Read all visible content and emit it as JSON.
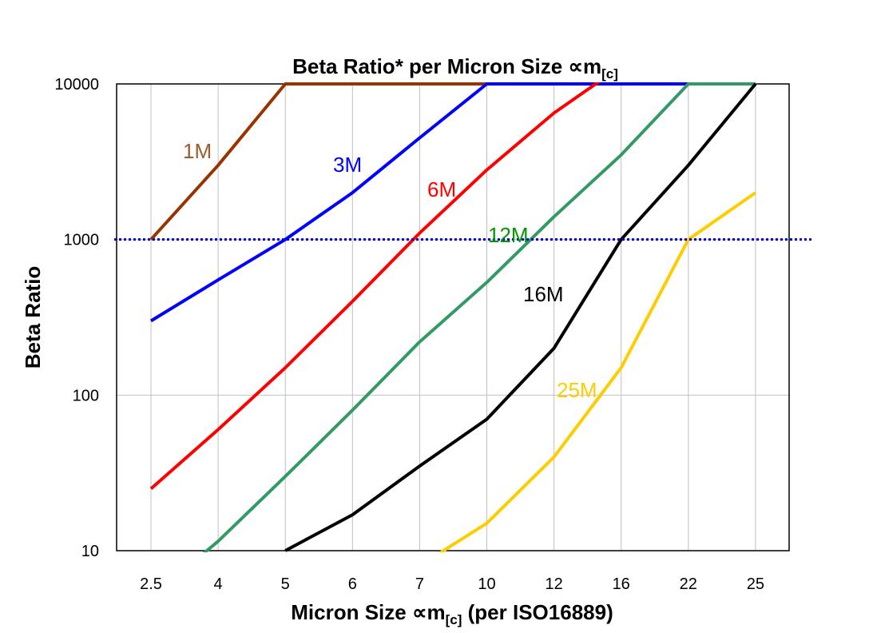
{
  "chart_data": {
    "type": "line",
    "title": "Beta Ratio* per Micron Size ∝m",
    "title_subscript": "[c]",
    "xlabel": "Micron Size ∝m",
    "xlabel_subscript": "[c]",
    "xlabel_suffix": " (per ISO16889)",
    "ylabel": "Beta Ratio",
    "y_scale": "log",
    "ylim": [
      10,
      10000
    ],
    "y_ticks": [
      "10",
      "100",
      "1000",
      "10000"
    ],
    "categories": [
      "2.5",
      "4",
      "5",
      "6",
      "7",
      "10",
      "12",
      "16",
      "22",
      "25"
    ],
    "grid": true,
    "reference_line": {
      "y": 1000,
      "color": "#0000CC",
      "style": "dotted"
    },
    "series": [
      {
        "name": "1M",
        "color": "#993300",
        "label_color": "#9C5B2B",
        "values": [
          1000,
          3000,
          10000,
          10000,
          10000,
          10000,
          10000,
          10000,
          10000,
          10000
        ]
      },
      {
        "name": "3M",
        "color": "#0000FF",
        "label_color": "#0000FF",
        "values": [
          300,
          550,
          1000,
          2000,
          4500,
          10000,
          10000,
          10000,
          10000,
          10000
        ]
      },
      {
        "name": "6M",
        "color": "#FF0000",
        "label_color": "#FF0000",
        "values": [
          25,
          60,
          150,
          400,
          1100,
          2800,
          6500,
          13000,
          13000,
          13000
        ]
      },
      {
        "name": "12M",
        "color": "#339966",
        "label_color": "#009900",
        "values": [
          5,
          11.5,
          30,
          80,
          220,
          530,
          1400,
          3500,
          10000,
          10000
        ]
      },
      {
        "name": "16M",
        "color": "#000000",
        "label_color": "#000000",
        "values": [
          null,
          null,
          10,
          17,
          35,
          70,
          200,
          1000,
          3000,
          10000
        ]
      },
      {
        "name": "25M",
        "color": "#FFCC00",
        "label_color": "#FFCC00",
        "values": [
          null,
          null,
          null,
          null,
          8,
          15,
          40,
          150,
          1000,
          2000
        ]
      }
    ]
  }
}
